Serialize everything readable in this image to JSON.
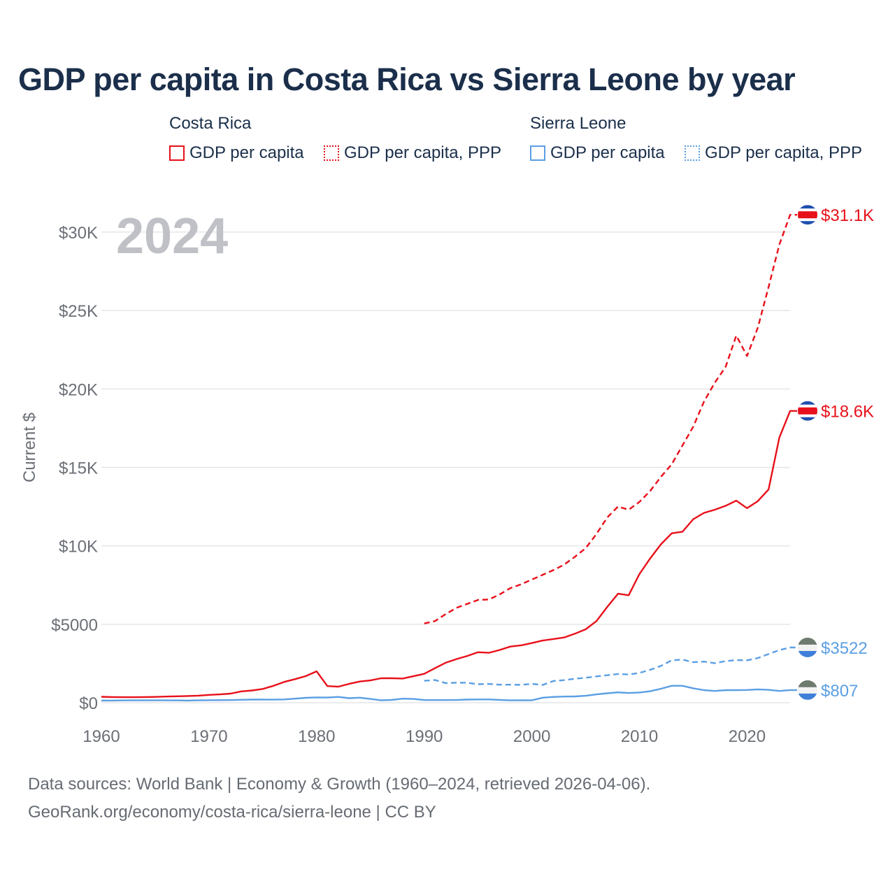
{
  "title": "GDP per capita in Costa Rica vs Sierra Leone by year",
  "legend": {
    "groups": [
      {
        "country": "Costa Rica",
        "items": [
          "GDP per capita",
          "GDP per capita, PPP"
        ]
      },
      {
        "country": "Sierra Leone",
        "items": [
          "GDP per capita",
          "GDP per capita, PPP"
        ]
      }
    ]
  },
  "footer": {
    "line1": "Data sources: World Bank | Economy & Growth (1960–2024, retrieved 2026-04-06).",
    "line2": "GeoRank.org/economy/costa-rica/sierra-leone | CC BY"
  },
  "chart_data": {
    "type": "line",
    "year_label": "2024",
    "ylabel": "Current $",
    "xlim": [
      1960,
      2024
    ],
    "ylim": [
      0,
      32000
    ],
    "x_ticks": [
      1960,
      1970,
      1980,
      1990,
      2000,
      2010,
      2020
    ],
    "y_ticks": [
      {
        "value": 0,
        "label": "$0"
      },
      {
        "value": 5000,
        "label": "$5000"
      },
      {
        "value": 10000,
        "label": "$10K"
      },
      {
        "value": 15000,
        "label": "$15K"
      },
      {
        "value": 20000,
        "label": "$20K"
      },
      {
        "value": 25000,
        "label": "$25K"
      },
      {
        "value": 30000,
        "label": "$30K"
      }
    ],
    "colors": {
      "costa_rica": "#e8101a",
      "sierra_leone": "#5b9fe3",
      "grid": "#e6e6e6",
      "axis_text": "#6b6f76",
      "year": "#bfc1c6"
    },
    "series": [
      {
        "name": "Costa Rica GDP per capita",
        "country": "costa_rica",
        "style": "solid",
        "end_label": "$18.6K",
        "x": [
          1960,
          1961,
          1962,
          1963,
          1964,
          1965,
          1966,
          1967,
          1968,
          1969,
          1970,
          1971,
          1972,
          1973,
          1974,
          1975,
          1976,
          1977,
          1978,
          1979,
          1980,
          1981,
          1982,
          1983,
          1984,
          1985,
          1986,
          1987,
          1988,
          1989,
          1990,
          1991,
          1992,
          1993,
          1994,
          1995,
          1996,
          1997,
          1998,
          1999,
          2000,
          2001,
          2002,
          2003,
          2004,
          2005,
          2006,
          2007,
          2008,
          2009,
          2010,
          2011,
          2012,
          2013,
          2014,
          2015,
          2016,
          2017,
          2018,
          2019,
          2020,
          2021,
          2022,
          2023,
          2024
        ],
        "values": [
          380,
          360,
          350,
          350,
          360,
          370,
          390,
          410,
          430,
          450,
          500,
          530,
          580,
          720,
          780,
          880,
          1080,
          1330,
          1500,
          1700,
          2000,
          1060,
          1020,
          1200,
          1350,
          1420,
          1560,
          1560,
          1540,
          1690,
          1840,
          2200,
          2550,
          2780,
          2980,
          3220,
          3180,
          3360,
          3580,
          3660,
          3800,
          3960,
          4060,
          4160,
          4400,
          4680,
          5200,
          6100,
          6950,
          6850,
          8200,
          9200,
          10100,
          10800,
          10900,
          11700,
          12100,
          12300,
          12550,
          12880,
          12400,
          12850,
          13600,
          16900,
          18600
        ]
      },
      {
        "name": "Costa Rica GDP per capita, PPP",
        "country": "costa_rica",
        "style": "dashed",
        "end_label": "$31.1K",
        "x": [
          1990,
          1991,
          1992,
          1993,
          1994,
          1995,
          1996,
          1997,
          1998,
          1999,
          2000,
          2001,
          2002,
          2003,
          2004,
          2005,
          2006,
          2007,
          2008,
          2009,
          2010,
          2011,
          2012,
          2013,
          2014,
          2015,
          2016,
          2017,
          2018,
          2019,
          2020,
          2021,
          2022,
          2023,
          2024
        ],
        "values": [
          5050,
          5200,
          5650,
          6050,
          6300,
          6550,
          6580,
          6900,
          7300,
          7550,
          7850,
          8150,
          8450,
          8800,
          9300,
          9850,
          10750,
          11800,
          12500,
          12300,
          12800,
          13500,
          14400,
          15200,
          16400,
          17600,
          19200,
          20400,
          21400,
          23400,
          22100,
          23900,
          26500,
          29200,
          31100
        ]
      },
      {
        "name": "Sierra Leone GDP per capita",
        "country": "sierra_leone",
        "style": "solid",
        "end_label": "$807",
        "x": [
          1960,
          1961,
          1962,
          1963,
          1964,
          1965,
          1966,
          1967,
          1968,
          1969,
          1970,
          1971,
          1972,
          1973,
          1974,
          1975,
          1976,
          1977,
          1978,
          1979,
          1980,
          1981,
          1982,
          1983,
          1984,
          1985,
          1986,
          1987,
          1988,
          1989,
          1990,
          1991,
          1992,
          1993,
          1994,
          1995,
          1996,
          1997,
          1998,
          1999,
          2000,
          2001,
          2002,
          2003,
          2004,
          2005,
          2006,
          2007,
          2008,
          2009,
          2010,
          2011,
          2012,
          2013,
          2014,
          2015,
          2016,
          2017,
          2018,
          2019,
          2020,
          2021,
          2022,
          2023,
          2024
        ],
        "values": [
          140,
          140,
          145,
          150,
          150,
          150,
          150,
          145,
          140,
          150,
          160,
          165,
          170,
          185,
          200,
          200,
          195,
          210,
          260,
          310,
          340,
          330,
          370,
          290,
          320,
          240,
          150,
          180,
          260,
          240,
          170,
          170,
          170,
          175,
          200,
          210,
          210,
          180,
          150,
          160,
          150,
          320,
          370,
          390,
          400,
          440,
          530,
          600,
          660,
          620,
          650,
          730,
          890,
          1080,
          1080,
          920,
          800,
          750,
          800,
          800,
          810,
          850,
          820,
          750,
          807
        ]
      },
      {
        "name": "Sierra Leone GDP per capita, PPP",
        "country": "sierra_leone",
        "style": "dashed",
        "end_label": "$3522",
        "x": [
          1990,
          1991,
          1992,
          1993,
          1994,
          1995,
          1996,
          1997,
          1998,
          1999,
          2000,
          2001,
          2002,
          2003,
          2004,
          2005,
          2006,
          2007,
          2008,
          2009,
          2010,
          2011,
          2012,
          2013,
          2014,
          2015,
          2016,
          2017,
          2018,
          2019,
          2020,
          2021,
          2022,
          2023,
          2024
        ],
        "values": [
          1400,
          1450,
          1250,
          1280,
          1270,
          1180,
          1200,
          1150,
          1150,
          1140,
          1200,
          1130,
          1380,
          1440,
          1530,
          1590,
          1680,
          1750,
          1830,
          1800,
          1900,
          2100,
          2350,
          2700,
          2750,
          2580,
          2620,
          2520,
          2650,
          2720,
          2700,
          2850,
          3100,
          3350,
          3522
        ]
      }
    ],
    "flags": {
      "costa_rica": "costa-rica-flag-icon",
      "sierra_leone": "sierra-leone-flag-icon"
    }
  }
}
